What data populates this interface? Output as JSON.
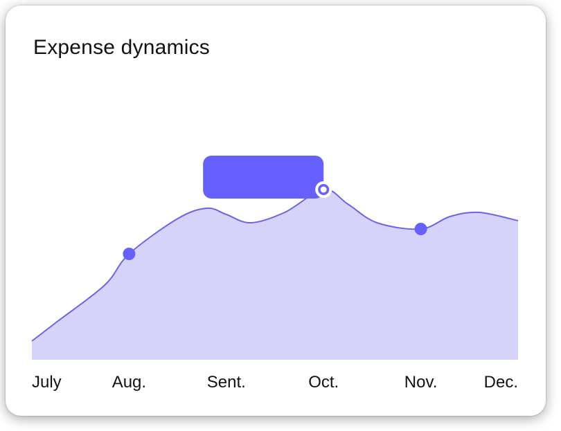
{
  "card": {
    "title": "Expense dynamics"
  },
  "colors": {
    "accent": "#6660FF",
    "area_fill": "#D5D3FA",
    "line": "#6B63E8",
    "text": "#111111"
  },
  "chart_data": {
    "type": "area",
    "title": "Expense dynamics",
    "xlabel": "",
    "ylabel": "",
    "categories": [
      "July",
      "Aug.",
      "Sent.",
      "Oct.",
      "Nov.",
      "Dec."
    ],
    "ylim": [
      0,
      100
    ],
    "grid": false,
    "legend": "none",
    "series": [
      {
        "values": [
          9,
          51,
          70,
          82,
          63,
          67
        ]
      }
    ],
    "intermediate_points": [
      {
        "x": 0.25,
        "y": 18
      },
      {
        "x": 0.75,
        "y": 36
      },
      {
        "x": 1.5,
        "y": 68
      },
      {
        "x": 1.8,
        "y": 73
      },
      {
        "x": 2.25,
        "y": 66
      },
      {
        "x": 2.6,
        "y": 71
      },
      {
        "x": 3.25,
        "y": 75
      },
      {
        "x": 3.55,
        "y": 66
      },
      {
        "x": 4.3,
        "y": 69
      },
      {
        "x": 4.6,
        "y": 71
      }
    ],
    "highlighted_points": [
      1,
      3,
      4
    ],
    "selected_point": 3,
    "tooltip": {
      "point": 3,
      "text": ""
    }
  }
}
